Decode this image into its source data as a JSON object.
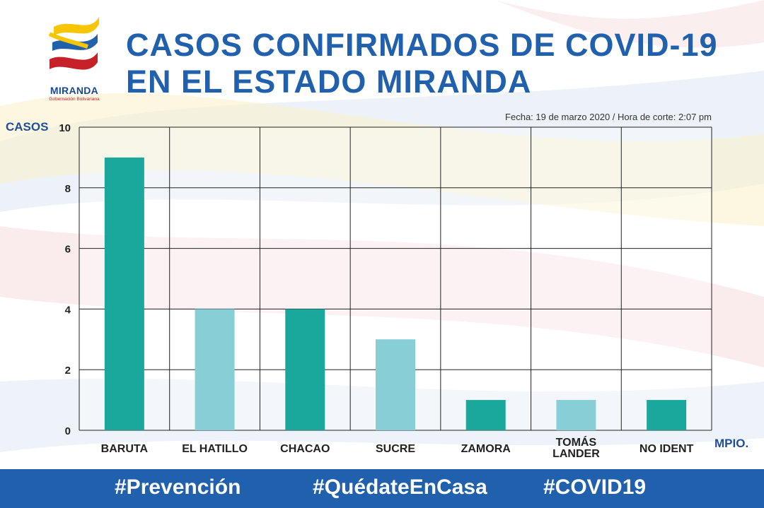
{
  "logo": {
    "name": "MIRANDA",
    "subtitle": "Gobernación Bolivariana"
  },
  "title": {
    "line1": "CASOS CONFIRMADOS DE COVID-19",
    "line2": "EN EL ESTADO MIRANDA"
  },
  "date_line": "Fecha: 19 de marzo 2020 / Hora de corte: 2:07 pm",
  "footer": {
    "tags": [
      "#Prevención",
      "#QuédateEnCasa",
      "#COVID19"
    ]
  },
  "colors": {
    "title": "#2160ac",
    "bar_dark": "#1aa79c",
    "bar_light": "#87ced6",
    "footer": "#2160ac"
  },
  "chart_data": {
    "type": "bar",
    "title": "CASOS CONFIRMADOS DE COVID-19 EN EL ESTADO MIRANDA",
    "xlabel": "MPIO.",
    "ylabel": "CASOS",
    "ylim": [
      0,
      10
    ],
    "yticks": [
      "0",
      "2",
      "4",
      "6",
      "8",
      "10"
    ],
    "grid": true,
    "categories": [
      "BARUTA",
      "EL HATILLO",
      "CHACAO",
      "SUCRE",
      "ZAMORA",
      "TOMÁS LANDER",
      "NO IDENT"
    ],
    "category_lines": [
      [
        "BARUTA"
      ],
      [
        "EL HATILLO"
      ],
      [
        "CHACAO"
      ],
      [
        "SUCRE"
      ],
      [
        "ZAMORA"
      ],
      [
        "TOMÁS",
        "LANDER"
      ],
      [
        "NO IDENT"
      ]
    ],
    "values": [
      9,
      4,
      4,
      3,
      1,
      1,
      1
    ],
    "bar_colors": [
      "#1aa79c",
      "#87ced6",
      "#1aa79c",
      "#87ced6",
      "#1aa79c",
      "#87ced6",
      "#1aa79c"
    ]
  }
}
